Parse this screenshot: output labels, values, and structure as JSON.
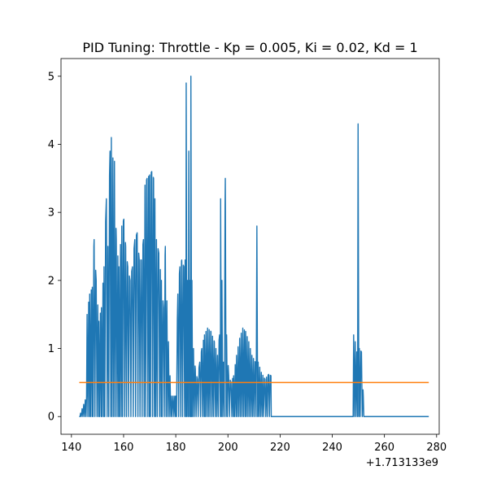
{
  "chart_data": {
    "type": "line",
    "title": "PID Tuning: Throttle - Kp = 0.005, Ki = 0.02, Kd = 1",
    "xlabel": "",
    "ylabel": "",
    "x_offset_label": "+1.713133e9",
    "xlim": [
      136,
      281
    ],
    "ylim": [
      -0.26,
      5.26
    ],
    "x_ticks": [
      140,
      160,
      180,
      200,
      220,
      240,
      260,
      280
    ],
    "y_ticks": [
      0,
      1,
      2,
      3,
      4,
      5
    ],
    "grid": false,
    "legend": "none",
    "series": [
      {
        "color": "#1f77b4",
        "oscillating": true,
        "points": [
          [
            143,
            0.0
          ],
          [
            143.5,
            0.05
          ],
          [
            145.8,
            0.3
          ],
          [
            146,
            1.5
          ],
          [
            147,
            1.8
          ],
          [
            148,
            1.9
          ],
          [
            148.7,
            2.6
          ],
          [
            149.5,
            2.0
          ],
          [
            150.5,
            1.4
          ],
          [
            151.5,
            1.6
          ],
          [
            152.5,
            2.2
          ],
          [
            153.4,
            3.2
          ],
          [
            154,
            2.5
          ],
          [
            154.8,
            3.9
          ],
          [
            155.3,
            4.1
          ],
          [
            155.9,
            3.8
          ],
          [
            156.5,
            3.75
          ],
          [
            157.2,
            2.6
          ],
          [
            158.2,
            2.2
          ],
          [
            159.3,
            2.8
          ],
          [
            160.1,
            2.9
          ],
          [
            160.8,
            2.5
          ],
          [
            161.6,
            2.2
          ],
          [
            162.5,
            2.0
          ],
          [
            163.4,
            2.2
          ],
          [
            164.3,
            2.6
          ],
          [
            165.2,
            2.7
          ],
          [
            166.0,
            2.3
          ],
          [
            166.8,
            2.3
          ],
          [
            167.6,
            2.6
          ],
          [
            168.2,
            3.4
          ],
          [
            169.0,
            3.5
          ],
          [
            170.0,
            3.55
          ],
          [
            170.8,
            3.6
          ],
          [
            171.5,
            3.5
          ],
          [
            172.0,
            3.2
          ],
          [
            172.6,
            2.6
          ],
          [
            173.5,
            2.4
          ],
          [
            174.5,
            2.0
          ],
          [
            175.3,
            1.6
          ],
          [
            176.0,
            2.5
          ],
          [
            176.6,
            1.7
          ],
          [
            177.2,
            1.1
          ],
          [
            177.8,
            0.6
          ],
          [
            178.3,
            0.3
          ],
          [
            179,
            0.3
          ],
          [
            180,
            0.3
          ],
          [
            180.8,
            1.8
          ],
          [
            181.6,
            2.2
          ],
          [
            182.3,
            2.3
          ],
          [
            183.1,
            2.2
          ],
          [
            183.6,
            2.3
          ],
          [
            184.0,
            4.9
          ],
          [
            184.5,
            2.0
          ],
          [
            185.0,
            3.9
          ],
          [
            185.4,
            2.0
          ],
          [
            185.8,
            5.0
          ],
          [
            186.2,
            2.0
          ],
          [
            186.8,
            1.0
          ],
          [
            187.5,
            0.7
          ],
          [
            188.3,
            0.55
          ],
          [
            189.2,
            0.8
          ],
          [
            190.0,
            1.0
          ],
          [
            191.0,
            1.2
          ],
          [
            192.2,
            1.3
          ],
          [
            193.5,
            1.25
          ],
          [
            194.8,
            1.1
          ],
          [
            196.0,
            0.9
          ],
          [
            196.8,
            1.2
          ],
          [
            197.2,
            3.2
          ],
          [
            197.7,
            2.0
          ],
          [
            198.3,
            0.8
          ],
          [
            199.0,
            3.5
          ],
          [
            199.5,
            1.2
          ],
          [
            200.3,
            0.6
          ],
          [
            201.2,
            0.5
          ],
          [
            202.2,
            0.6
          ],
          [
            203.3,
            0.9
          ],
          [
            204.5,
            1.15
          ],
          [
            205.7,
            1.3
          ],
          [
            206.8,
            1.25
          ],
          [
            208.0,
            1.1
          ],
          [
            209.2,
            0.9
          ],
          [
            210.5,
            0.8
          ],
          [
            211.1,
            2.8
          ],
          [
            211.6,
            0.8
          ],
          [
            212.8,
            0.65
          ],
          [
            214.2,
            0.55
          ],
          [
            215.6,
            0.62
          ],
          [
            216.5,
            0.6
          ],
          [
            216.6,
            0.0
          ],
          [
            248,
            0.0
          ],
          [
            248.2,
            1.2
          ],
          [
            248.8,
            1.1
          ],
          [
            249.4,
            0.95
          ],
          [
            249.9,
            4.3
          ],
          [
            250.4,
            1.0
          ],
          [
            251.2,
            0.95
          ],
          [
            251.9,
            0.3
          ],
          [
            252.1,
            0.0
          ],
          [
            277,
            0.0
          ]
        ]
      },
      {
        "color": "#ff7f0e",
        "oscillating": false,
        "points": [
          [
            143,
            0.5
          ],
          [
            277,
            0.5
          ]
        ]
      }
    ]
  }
}
